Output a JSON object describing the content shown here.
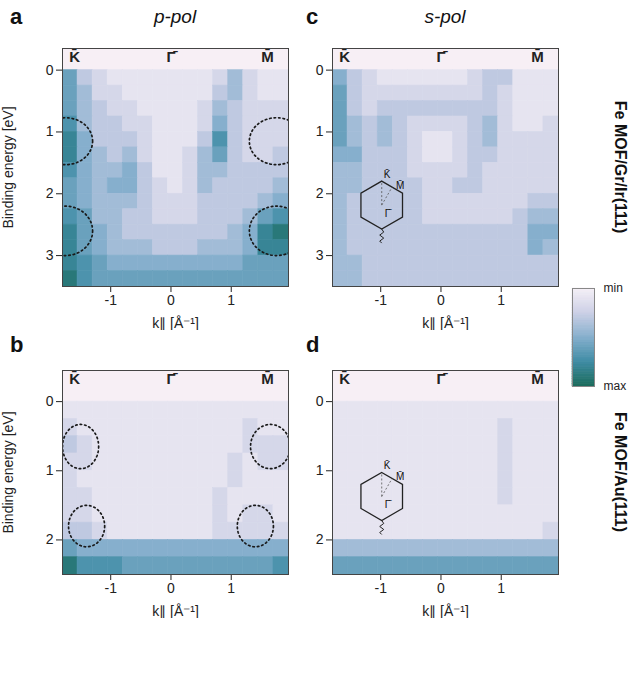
{
  "columns": [
    "p-pol",
    "s-pol"
  ],
  "rows": [
    "Fe MOF/Gr/Ir(111)",
    "Fe MOF/Au(111)"
  ],
  "colorbar": {
    "range": [
      0,
      10
    ],
    "ticks": [
      {
        "value": 0,
        "label": "min"
      },
      {
        "value": 10,
        "label": "max"
      }
    ],
    "colors": [
      "#f6f1f7",
      "#cdd0e6",
      "#86afcd",
      "#3f8ca5",
      "#1b6b5b"
    ]
  },
  "chart_data": [
    {
      "type": "heatmap",
      "panel": "a",
      "x_label": "k∥ [Å⁻¹]",
      "y_label": "Binding energy [eV]",
      "xlim": [
        -1.8,
        1.95
      ],
      "ylim": [
        -0.35,
        3.5
      ],
      "xticks": [
        -1,
        0,
        1
      ],
      "yticks": [
        0,
        1,
        2,
        3
      ],
      "symmetry_points": [
        {
          "label": "K̄",
          "k": -1.6
        },
        {
          "label": "Γ̄",
          "k": 0
        },
        {
          "label": "M̄",
          "k": 1.6
        }
      ],
      "highlights": [
        {
          "x": -1.75,
          "y": 1.15,
          "rx": 0.45,
          "ry": 0.38
        },
        {
          "x": -1.75,
          "y": 2.6,
          "rx": 0.45,
          "ry": 0.4
        },
        {
          "x": 1.75,
          "y": 1.15,
          "rx": 0.45,
          "ry": 0.38
        },
        {
          "x": 1.75,
          "y": 2.6,
          "rx": 0.45,
          "ry": 0.4
        }
      ],
      "x_edges": [
        -1.8,
        -1.55,
        -1.3,
        -1.05,
        -0.8,
        -0.55,
        -0.3,
        -0.05,
        0.2,
        0.45,
        0.7,
        0.95,
        1.2,
        1.45,
        1.7,
        1.95
      ],
      "y_edges": [
        0,
        0.25,
        0.5,
        0.75,
        1,
        1.25,
        1.5,
        1.75,
        2,
        2.25,
        2.5,
        2.75,
        3,
        3.25,
        3.5
      ],
      "z": [
        [
          6,
          3,
          2,
          1,
          1,
          1,
          1,
          1,
          1,
          1,
          2,
          4,
          2,
          1,
          1
        ],
        [
          6,
          4,
          2,
          2,
          1,
          1,
          1,
          1,
          1,
          1,
          3,
          4,
          2,
          1,
          1
        ],
        [
          6,
          4,
          3,
          2,
          2,
          1,
          1,
          1,
          1,
          2,
          4,
          3,
          2,
          2,
          2
        ],
        [
          7,
          4,
          3,
          3,
          2,
          2,
          1,
          1,
          1,
          2,
          5,
          3,
          2,
          2,
          2
        ],
        [
          8,
          5,
          3,
          3,
          3,
          2,
          1,
          1,
          1,
          3,
          7,
          3,
          2,
          2,
          2
        ],
        [
          8,
          5,
          4,
          3,
          4,
          2,
          1,
          1,
          2,
          4,
          6,
          3,
          2,
          2,
          3
        ],
        [
          7,
          5,
          4,
          4,
          5,
          3,
          1,
          1,
          2,
          4,
          4,
          3,
          3,
          3,
          3
        ],
        [
          6,
          5,
          4,
          5,
          5,
          3,
          2,
          1,
          2,
          4,
          3,
          3,
          3,
          3,
          4
        ],
        [
          6,
          5,
          4,
          4,
          4,
          3,
          2,
          2,
          2,
          3,
          3,
          3,
          3,
          4,
          5
        ],
        [
          7,
          6,
          4,
          4,
          3,
          3,
          2,
          2,
          2,
          3,
          3,
          3,
          4,
          6,
          7
        ],
        [
          8,
          6,
          5,
          4,
          3,
          3,
          3,
          3,
          3,
          3,
          3,
          4,
          5,
          8,
          9
        ],
        [
          8,
          6,
          5,
          4,
          4,
          4,
          3,
          3,
          3,
          4,
          4,
          4,
          5,
          8,
          8
        ],
        [
          8,
          7,
          6,
          5,
          5,
          5,
          5,
          5,
          5,
          5,
          5,
          5,
          6,
          6,
          6
        ],
        [
          9,
          7,
          6,
          6,
          6,
          6,
          6,
          6,
          6,
          6,
          6,
          6,
          6,
          6,
          6
        ]
      ]
    },
    {
      "type": "heatmap",
      "panel": "b",
      "x_label": "k∥ [Å⁻¹]",
      "y_label": "Binding energy [eV]",
      "xlim": [
        -1.8,
        1.95
      ],
      "ylim": [
        -0.45,
        2.5
      ],
      "xticks": [
        -1,
        0,
        1
      ],
      "yticks": [
        0,
        1,
        2
      ],
      "symmetry_points": [
        {
          "label": "K̄",
          "k": -1.6
        },
        {
          "label": "Γ̄",
          "k": 0
        },
        {
          "label": "M̄",
          "k": 1.6
        }
      ],
      "highlights": [
        {
          "x": -1.5,
          "y": 0.65,
          "rx": 0.3,
          "ry": 0.32
        },
        {
          "x": -1.4,
          "y": 1.8,
          "rx": 0.3,
          "ry": 0.3
        },
        {
          "x": 1.65,
          "y": 0.65,
          "rx": 0.33,
          "ry": 0.32
        },
        {
          "x": 1.4,
          "y": 1.8,
          "rx": 0.3,
          "ry": 0.3
        }
      ],
      "x_edges": [
        -1.8,
        -1.55,
        -1.3,
        -1.05,
        -0.8,
        -0.55,
        -0.3,
        -0.05,
        0.2,
        0.45,
        0.7,
        0.95,
        1.2,
        1.45,
        1.7,
        1.95
      ],
      "y_edges": [
        0,
        0.25,
        0.5,
        0.75,
        1,
        1.25,
        1.5,
        1.75,
        2,
        2.25,
        2.5
      ],
      "z": [
        [
          1,
          1,
          1,
          1,
          1,
          1,
          1,
          1,
          1,
          1,
          1,
          1,
          1,
          1,
          1
        ],
        [
          2,
          1,
          1,
          1,
          1,
          1,
          1,
          1,
          1,
          1,
          1,
          1,
          2,
          1,
          1
        ],
        [
          3,
          2,
          1,
          1,
          1,
          1,
          1,
          1,
          1,
          1,
          1,
          1,
          2,
          2,
          2
        ],
        [
          2,
          2,
          1,
          1,
          1,
          1,
          1,
          1,
          1,
          1,
          1,
          2,
          1,
          2,
          2
        ],
        [
          2,
          1,
          1,
          1,
          1,
          1,
          1,
          1,
          1,
          1,
          1,
          2,
          1,
          1,
          1
        ],
        [
          2,
          2,
          1,
          1,
          1,
          1,
          1,
          1,
          1,
          1,
          2,
          1,
          1,
          1,
          1
        ],
        [
          2,
          2,
          1,
          1,
          1,
          1,
          1,
          1,
          1,
          1,
          2,
          1,
          2,
          2,
          1
        ],
        [
          3,
          3,
          2,
          1,
          1,
          1,
          1,
          1,
          1,
          1,
          2,
          2,
          2,
          2,
          2
        ],
        [
          6,
          5,
          5,
          5,
          5,
          5,
          5,
          5,
          5,
          5,
          5,
          5,
          5,
          5,
          5
        ],
        [
          9,
          7,
          7,
          7,
          6,
          6,
          6,
          6,
          6,
          6,
          6,
          6,
          6,
          6,
          7
        ]
      ]
    },
    {
      "type": "heatmap",
      "panel": "c",
      "x_label": "k∥ [Å⁻¹]",
      "xlim": [
        -1.8,
        1.95
      ],
      "ylim": [
        -0.35,
        3.5
      ],
      "xticks": [
        -1,
        0,
        1
      ],
      "yticks": [
        0,
        1,
        2,
        3
      ],
      "symmetry_points": [
        {
          "label": "K̄",
          "k": -1.6
        },
        {
          "label": "Γ̄",
          "k": 0
        },
        {
          "label": "M̄",
          "k": 1.6
        }
      ],
      "inset": [
        "K̄",
        "M̄",
        "Γ̄"
      ],
      "x_edges": [
        -1.8,
        -1.55,
        -1.3,
        -1.05,
        -0.8,
        -0.55,
        -0.3,
        -0.05,
        0.2,
        0.45,
        0.7,
        0.95,
        1.2,
        1.45,
        1.7,
        1.95
      ],
      "y_edges": [
        0,
        0.25,
        0.5,
        0.75,
        1,
        1.25,
        1.5,
        1.75,
        2,
        2.25,
        2.5,
        2.75,
        3,
        3.25,
        3.5
      ],
      "z": [
        [
          5,
          3,
          2,
          1,
          1,
          1,
          1,
          1,
          1,
          2,
          3,
          3,
          1,
          1,
          1
        ],
        [
          6,
          3,
          2,
          2,
          2,
          2,
          2,
          2,
          2,
          2,
          3,
          2,
          1,
          1,
          1
        ],
        [
          6,
          3,
          2,
          3,
          3,
          3,
          3,
          3,
          3,
          3,
          3,
          2,
          1,
          1,
          1
        ],
        [
          6,
          4,
          3,
          4,
          3,
          2,
          2,
          2,
          2,
          3,
          4,
          2,
          1,
          1,
          2
        ],
        [
          6,
          4,
          3,
          4,
          3,
          2,
          1,
          1,
          2,
          3,
          4,
          2,
          2,
          2,
          2
        ],
        [
          5,
          5,
          3,
          3,
          3,
          2,
          1,
          1,
          2,
          3,
          3,
          2,
          2,
          2,
          2
        ],
        [
          4,
          4,
          3,
          3,
          3,
          2,
          2,
          2,
          2,
          3,
          2,
          2,
          2,
          2,
          2
        ],
        [
          4,
          4,
          3,
          3,
          3,
          3,
          2,
          2,
          3,
          3,
          2,
          2,
          2,
          2,
          2
        ],
        [
          4,
          3,
          3,
          3,
          3,
          3,
          2,
          2,
          2,
          2,
          2,
          2,
          2,
          3,
          3
        ],
        [
          4,
          3,
          3,
          3,
          3,
          3,
          2,
          2,
          2,
          2,
          2,
          2,
          3,
          4,
          4
        ],
        [
          4,
          3,
          3,
          3,
          3,
          3,
          3,
          3,
          3,
          3,
          3,
          3,
          3,
          5,
          5
        ],
        [
          4,
          3,
          3,
          3,
          3,
          3,
          3,
          3,
          3,
          3,
          3,
          3,
          3,
          5,
          4
        ],
        [
          4,
          4,
          3,
          3,
          3,
          3,
          3,
          3,
          3,
          3,
          3,
          3,
          3,
          3,
          3
        ],
        [
          4,
          4,
          3,
          3,
          3,
          3,
          3,
          3,
          3,
          3,
          3,
          3,
          3,
          3,
          3
        ]
      ]
    },
    {
      "type": "heatmap",
      "panel": "d",
      "x_label": "k∥ [Å⁻¹]",
      "xlim": [
        -1.8,
        1.95
      ],
      "ylim": [
        -0.45,
        2.5
      ],
      "xticks": [
        -1,
        0,
        1
      ],
      "yticks": [
        0,
        1,
        2
      ],
      "symmetry_points": [
        {
          "label": "K̄",
          "k": -1.6
        },
        {
          "label": "Γ̄",
          "k": 0
        },
        {
          "label": "M̄",
          "k": 1.6
        }
      ],
      "inset": [
        "K̄",
        "M̄",
        "Γ̄"
      ],
      "x_edges": [
        -1.8,
        -1.55,
        -1.3,
        -1.05,
        -0.8,
        -0.55,
        -0.3,
        -0.05,
        0.2,
        0.45,
        0.7,
        0.95,
        1.2,
        1.45,
        1.7,
        1.95
      ],
      "y_edges": [
        0,
        0.25,
        0.5,
        0.75,
        1,
        1.25,
        1.5,
        1.75,
        2,
        2.25,
        2.5
      ],
      "z": [
        [
          1,
          1,
          1,
          1,
          1,
          1,
          1,
          1,
          1,
          1,
          1,
          1,
          1,
          1,
          1
        ],
        [
          1,
          1,
          1,
          1,
          1,
          1,
          1,
          1,
          1,
          1,
          1,
          2,
          1,
          1,
          1
        ],
        [
          1,
          1,
          1,
          1,
          1,
          1,
          1,
          1,
          1,
          1,
          1,
          2,
          1,
          1,
          1
        ],
        [
          1,
          1,
          1,
          1,
          1,
          1,
          1,
          1,
          1,
          1,
          1,
          2,
          1,
          1,
          1
        ],
        [
          1,
          1,
          1,
          1,
          1,
          1,
          1,
          1,
          1,
          1,
          1,
          2,
          1,
          1,
          1
        ],
        [
          1,
          1,
          1,
          1,
          1,
          1,
          1,
          1,
          1,
          1,
          1,
          2,
          1,
          1,
          1
        ],
        [
          1,
          1,
          1,
          1,
          1,
          1,
          1,
          1,
          1,
          1,
          1,
          1,
          1,
          1,
          1
        ],
        [
          1,
          1,
          1,
          1,
          1,
          1,
          1,
          1,
          1,
          1,
          1,
          1,
          1,
          1,
          2
        ],
        [
          4,
          4,
          4,
          4,
          4,
          4,
          4,
          4,
          4,
          4,
          4,
          4,
          4,
          4,
          4
        ],
        [
          6,
          6,
          6,
          6,
          6,
          6,
          6,
          6,
          6,
          6,
          6,
          6,
          6,
          6,
          6
        ]
      ]
    }
  ]
}
